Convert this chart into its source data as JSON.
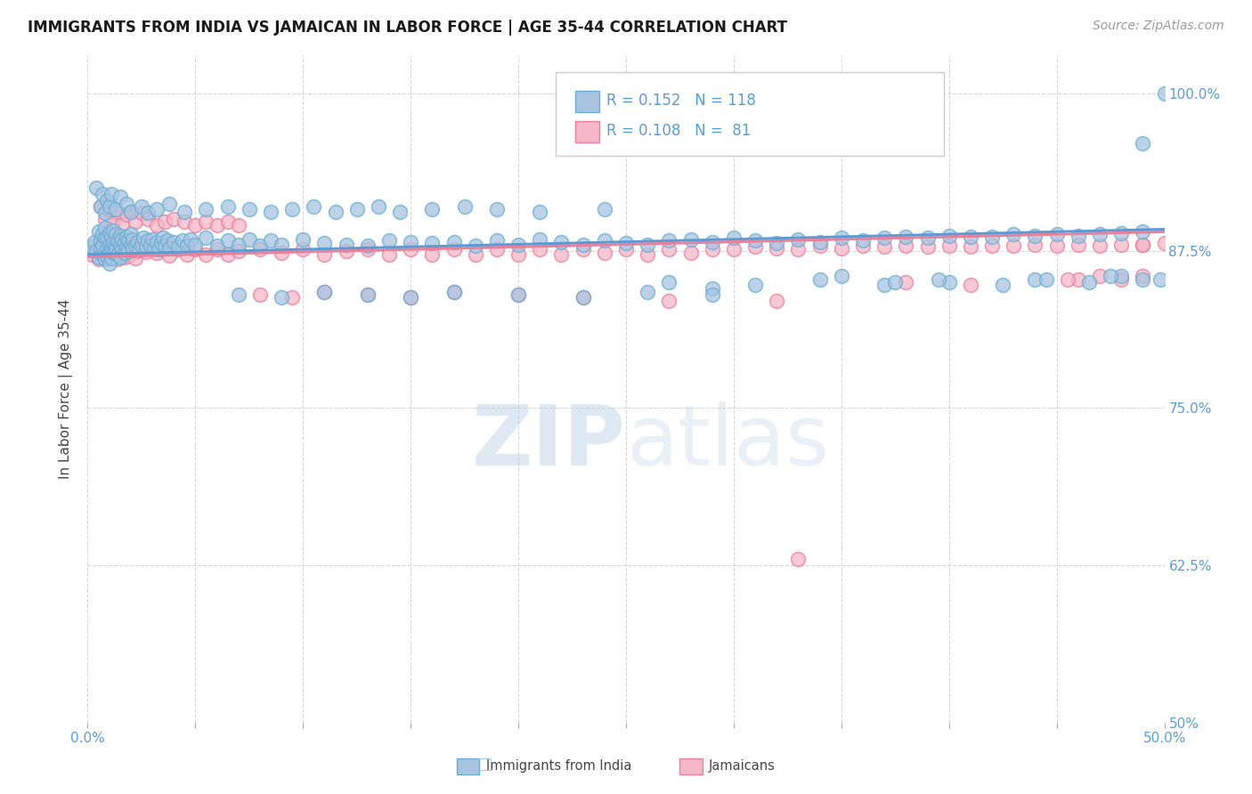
{
  "title": "IMMIGRANTS FROM INDIA VS JAMAICAN IN LABOR FORCE | AGE 35-44 CORRELATION CHART",
  "source_text": "Source: ZipAtlas.com",
  "ylabel": "In Labor Force | Age 35-44",
  "xlim": [
    0.0,
    0.5
  ],
  "ylim": [
    0.5,
    1.03
  ],
  "ytick_vals": [
    0.5,
    0.625,
    0.75,
    0.875,
    1.0
  ],
  "ytick_labels_right": [
    "50%",
    "62.5%",
    "75.0%",
    "87.5%",
    "100.0%"
  ],
  "india_color": "#a8c4e0",
  "india_edge_color": "#6aaed6",
  "jamaica_color": "#f4b8c8",
  "jamaica_edge_color": "#e87fa0",
  "india_line_color": "#5b9bd5",
  "jamaica_line_color": "#e8819a",
  "R_india": 0.152,
  "N_india": 118,
  "R_jamaica": 0.108,
  "N_jamaica": 81,
  "india_x": [
    0.002,
    0.003,
    0.004,
    0.005,
    0.005,
    0.006,
    0.006,
    0.007,
    0.007,
    0.007,
    0.008,
    0.008,
    0.008,
    0.009,
    0.009,
    0.009,
    0.01,
    0.01,
    0.01,
    0.01,
    0.011,
    0.011,
    0.011,
    0.011,
    0.012,
    0.012,
    0.012,
    0.013,
    0.013,
    0.013,
    0.014,
    0.014,
    0.015,
    0.015,
    0.015,
    0.016,
    0.016,
    0.017,
    0.017,
    0.018,
    0.018,
    0.019,
    0.019,
    0.02,
    0.02,
    0.021,
    0.021,
    0.022,
    0.023,
    0.024,
    0.025,
    0.026,
    0.027,
    0.028,
    0.029,
    0.03,
    0.031,
    0.032,
    0.033,
    0.034,
    0.035,
    0.036,
    0.037,
    0.038,
    0.04,
    0.042,
    0.044,
    0.046,
    0.048,
    0.05,
    0.055,
    0.06,
    0.065,
    0.07,
    0.075,
    0.08,
    0.085,
    0.09,
    0.1,
    0.11,
    0.12,
    0.13,
    0.14,
    0.15,
    0.16,
    0.17,
    0.18,
    0.19,
    0.2,
    0.21,
    0.22,
    0.23,
    0.24,
    0.25,
    0.26,
    0.27,
    0.28,
    0.29,
    0.3,
    0.31,
    0.32,
    0.33,
    0.34,
    0.35,
    0.36,
    0.37,
    0.38,
    0.39,
    0.4,
    0.41,
    0.42,
    0.43,
    0.44,
    0.45,
    0.46,
    0.47,
    0.48,
    0.49
  ],
  "india_y": [
    0.878,
    0.882,
    0.875,
    0.89,
    0.87,
    0.883,
    0.876,
    0.888,
    0.872,
    0.879,
    0.885,
    0.893,
    0.868,
    0.877,
    0.886,
    0.871,
    0.88,
    0.889,
    0.874,
    0.865,
    0.878,
    0.887,
    0.869,
    0.875,
    0.882,
    0.891,
    0.873,
    0.88,
    0.888,
    0.876,
    0.883,
    0.872,
    0.879,
    0.887,
    0.87,
    0.876,
    0.884,
    0.873,
    0.881,
    0.878,
    0.886,
    0.875,
    0.883,
    0.88,
    0.888,
    0.877,
    0.884,
    0.879,
    0.882,
    0.876,
    0.88,
    0.885,
    0.878,
    0.883,
    0.879,
    0.884,
    0.877,
    0.882,
    0.876,
    0.881,
    0.885,
    0.879,
    0.883,
    0.877,
    0.882,
    0.878,
    0.883,
    0.879,
    0.884,
    0.88,
    0.885,
    0.879,
    0.883,
    0.88,
    0.884,
    0.879,
    0.883,
    0.88,
    0.884,
    0.881,
    0.88,
    0.879,
    0.883,
    0.882,
    0.881,
    0.882,
    0.879,
    0.883,
    0.88,
    0.884,
    0.882,
    0.88,
    0.883,
    0.881,
    0.88,
    0.883,
    0.884,
    0.882,
    0.885,
    0.883,
    0.881,
    0.884,
    0.882,
    0.885,
    0.883,
    0.885,
    0.886,
    0.885,
    0.887,
    0.886,
    0.886,
    0.888,
    0.887,
    0.888,
    0.887,
    0.888,
    0.889,
    0.89
  ],
  "india_x_extra": [
    0.004,
    0.006,
    0.007,
    0.008,
    0.009,
    0.01,
    0.011,
    0.013,
    0.015,
    0.018,
    0.02,
    0.025,
    0.028,
    0.032,
    0.038,
    0.045,
    0.055,
    0.065,
    0.075,
    0.085,
    0.095,
    0.105,
    0.115,
    0.125,
    0.135,
    0.145,
    0.16,
    0.175,
    0.19,
    0.21,
    0.24,
    0.27,
    0.29,
    0.31,
    0.34,
    0.37,
    0.4,
    0.44,
    0.48,
    0.49,
    0.35,
    0.375,
    0.395,
    0.425,
    0.445,
    0.465,
    0.475,
    0.498,
    0.5,
    0.49,
    0.07,
    0.09,
    0.11,
    0.13,
    0.15,
    0.17,
    0.2,
    0.23,
    0.26,
    0.29
  ],
  "india_y_extra": [
    0.925,
    0.91,
    0.92,
    0.905,
    0.915,
    0.91,
    0.92,
    0.908,
    0.918,
    0.912,
    0.906,
    0.91,
    0.905,
    0.908,
    0.912,
    0.906,
    0.908,
    0.91,
    0.908,
    0.906,
    0.908,
    0.91,
    0.906,
    0.908,
    0.91,
    0.906,
    0.908,
    0.91,
    0.908,
    0.906,
    0.908,
    0.85,
    0.845,
    0.848,
    0.852,
    0.848,
    0.85,
    0.852,
    0.855,
    0.852,
    0.855,
    0.85,
    0.852,
    0.848,
    0.852,
    0.85,
    0.855,
    0.852,
    1.0,
    0.96,
    0.84,
    0.838,
    0.842,
    0.84,
    0.838,
    0.842,
    0.84,
    0.838,
    0.842,
    0.84
  ],
  "jamaica_x": [
    0.002,
    0.004,
    0.005,
    0.006,
    0.007,
    0.008,
    0.009,
    0.01,
    0.011,
    0.012,
    0.013,
    0.014,
    0.015,
    0.016,
    0.017,
    0.018,
    0.019,
    0.02,
    0.021,
    0.022,
    0.023,
    0.025,
    0.027,
    0.029,
    0.032,
    0.035,
    0.038,
    0.042,
    0.046,
    0.05,
    0.055,
    0.06,
    0.065,
    0.07,
    0.08,
    0.09,
    0.1,
    0.11,
    0.12,
    0.13,
    0.14,
    0.15,
    0.16,
    0.17,
    0.18,
    0.19,
    0.2,
    0.21,
    0.22,
    0.23,
    0.24,
    0.25,
    0.26,
    0.27,
    0.28,
    0.29,
    0.3,
    0.31,
    0.32,
    0.33,
    0.34,
    0.35,
    0.36,
    0.37,
    0.38,
    0.39,
    0.4,
    0.41,
    0.42,
    0.43,
    0.44,
    0.45,
    0.46,
    0.47,
    0.48,
    0.49,
    0.5,
    0.49,
    0.48,
    0.47,
    0.46
  ],
  "jamaica_y": [
    0.872,
    0.876,
    0.868,
    0.88,
    0.874,
    0.882,
    0.87,
    0.878,
    0.886,
    0.872,
    0.879,
    0.868,
    0.875,
    0.883,
    0.87,
    0.877,
    0.871,
    0.876,
    0.882,
    0.869,
    0.875,
    0.88,
    0.874,
    0.879,
    0.873,
    0.876,
    0.871,
    0.876,
    0.872,
    0.876,
    0.872,
    0.876,
    0.872,
    0.875,
    0.876,
    0.873,
    0.876,
    0.872,
    0.875,
    0.876,
    0.872,
    0.876,
    0.872,
    0.876,
    0.872,
    0.876,
    0.872,
    0.876,
    0.872,
    0.876,
    0.873,
    0.876,
    0.872,
    0.876,
    0.873,
    0.876,
    0.876,
    0.878,
    0.877,
    0.876,
    0.879,
    0.877,
    0.879,
    0.878,
    0.879,
    0.878,
    0.879,
    0.878,
    0.879,
    0.879,
    0.88,
    0.879,
    0.88,
    0.879,
    0.88,
    0.88,
    0.881,
    0.855,
    0.852,
    0.855,
    0.852
  ],
  "jamaica_x_extra": [
    0.006,
    0.008,
    0.01,
    0.012,
    0.014,
    0.016,
    0.018,
    0.02,
    0.022,
    0.025,
    0.028,
    0.032,
    0.036,
    0.04,
    0.045,
    0.05,
    0.055,
    0.06,
    0.065,
    0.07,
    0.08,
    0.095,
    0.11,
    0.13,
    0.15,
    0.17,
    0.2,
    0.23,
    0.27,
    0.32,
    0.33,
    0.38,
    0.41,
    0.455,
    0.49
  ],
  "jamaica_y_extra": [
    0.91,
    0.9,
    0.908,
    0.898,
    0.906,
    0.896,
    0.904,
    0.906,
    0.898,
    0.905,
    0.9,
    0.895,
    0.898,
    0.9,
    0.898,
    0.895,
    0.898,
    0.895,
    0.898,
    0.895,
    0.84,
    0.838,
    0.842,
    0.84,
    0.838,
    0.842,
    0.84,
    0.838,
    0.835,
    0.835,
    0.63,
    0.85,
    0.848,
    0.852,
    0.88
  ]
}
